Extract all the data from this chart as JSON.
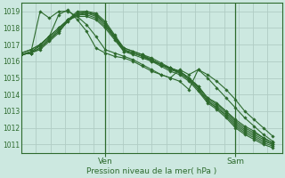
{
  "xlabel": "Pression niveau de la mer( hPa )",
  "bg_color": "#cce8e0",
  "grid_color": "#b0ccc4",
  "line_color": "#2d6a2d",
  "text_color": "#2d6a2d",
  "spine_color": "#2d6a2d",
  "ylim": [
    1010.5,
    1019.5
  ],
  "yticks": [
    1011,
    1012,
    1013,
    1014,
    1015,
    1016,
    1017,
    1018,
    1019
  ],
  "xlim": [
    0,
    28
  ],
  "ven_x": 9,
  "sam_x": 23,
  "n_points": 28,
  "series": [
    [
      1016.4,
      1016.5,
      1016.7,
      1017.2,
      1017.7,
      1018.5,
      1019.0,
      1019.0,
      1018.8,
      1018.3,
      1017.5,
      1016.7,
      1016.5,
      1016.3,
      1016.0,
      1015.7,
      1015.4,
      1015.2,
      1014.8,
      1014.2,
      1013.5,
      1013.1,
      1012.6,
      1012.0,
      1011.6,
      1011.3,
      1011.0,
      1010.8
    ],
    [
      1016.4,
      1016.5,
      1016.8,
      1017.3,
      1017.8,
      1018.4,
      1018.9,
      1019.0,
      1018.9,
      1018.4,
      1017.6,
      1016.8,
      1016.6,
      1016.4,
      1016.1,
      1015.8,
      1015.5,
      1015.3,
      1014.9,
      1014.3,
      1013.6,
      1013.2,
      1012.7,
      1012.1,
      1011.7,
      1011.4,
      1011.1,
      1010.9
    ],
    [
      1016.4,
      1016.5,
      1016.8,
      1017.3,
      1017.8,
      1018.4,
      1018.8,
      1018.9,
      1018.8,
      1018.3,
      1017.5,
      1016.8,
      1016.6,
      1016.4,
      1016.2,
      1015.9,
      1015.6,
      1015.3,
      1014.9,
      1014.3,
      1013.6,
      1013.2,
      1012.8,
      1012.2,
      1011.8,
      1011.5,
      1011.2,
      1011.0
    ],
    [
      1016.4,
      1016.6,
      1016.9,
      1017.4,
      1017.9,
      1018.5,
      1018.9,
      1018.9,
      1018.7,
      1018.2,
      1017.4,
      1016.7,
      1016.5,
      1016.3,
      1016.1,
      1015.8,
      1015.6,
      1015.4,
      1015.0,
      1014.4,
      1013.7,
      1013.3,
      1012.9,
      1012.3,
      1011.9,
      1011.6,
      1011.3,
      1011.0
    ],
    [
      1016.5,
      1016.7,
      1017.0,
      1017.5,
      1018.0,
      1018.5,
      1018.8,
      1018.8,
      1018.6,
      1018.1,
      1017.4,
      1016.6,
      1016.5,
      1016.3,
      1016.1,
      1015.8,
      1015.6,
      1015.4,
      1015.0,
      1014.5,
      1013.8,
      1013.4,
      1013.0,
      1012.4,
      1012.0,
      1011.7,
      1011.4,
      1011.1
    ],
    [
      1016.5,
      1016.7,
      1017.0,
      1017.5,
      1018.0,
      1018.5,
      1018.7,
      1018.7,
      1018.5,
      1018.0,
      1017.3,
      1016.6,
      1016.4,
      1016.2,
      1016.0,
      1015.8,
      1015.5,
      1015.4,
      1015.0,
      1014.5,
      1013.8,
      1013.5,
      1013.0,
      1012.5,
      1012.1,
      1011.8,
      1011.4,
      1011.1
    ]
  ],
  "spiky1": [
    1016.4,
    1016.5,
    1019.0,
    1018.6,
    1019.0,
    1019.0,
    1018.7,
    1018.2,
    1017.5,
    1016.7,
    1016.5,
    1016.3,
    1016.1,
    1015.8,
    1015.5,
    1015.2,
    1015.0,
    1015.5,
    1015.2,
    1015.5,
    1015.2,
    1014.8,
    1014.3,
    1013.7,
    1013.0,
    1012.5,
    1012.0,
    1011.5
  ],
  "spiky2": [
    1016.4,
    1016.5,
    1017.0,
    1017.5,
    1018.8,
    1019.1,
    1018.5,
    1017.8,
    1016.8,
    1016.5,
    1016.3,
    1016.2,
    1016.0,
    1015.7,
    1015.4,
    1015.2,
    1015.0,
    1014.8,
    1014.3,
    1015.5,
    1015.0,
    1014.4,
    1013.8,
    1013.2,
    1012.6,
    1012.1,
    1011.6,
    1011.2
  ]
}
